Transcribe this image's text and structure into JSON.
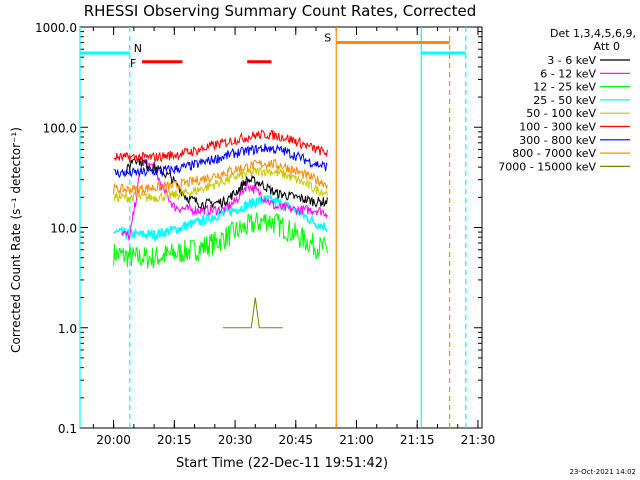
{
  "chart_data": {
    "type": "line",
    "title": "RHESSI Observing Summary Count Rates, Corrected",
    "xlabel": "Start Time (22-Dec-11 19:51:42)",
    "ylabel": "Corrected Count Rate (s⁻¹ detector⁻¹)",
    "y_scale": "log",
    "ylim": [
      0.1,
      1000
    ],
    "xlim": [
      "19:51:42",
      "21:31:00"
    ],
    "x_ticks": [
      "20:00",
      "20:15",
      "20:30",
      "20:45",
      "21:00",
      "21:15",
      "21:30"
    ],
    "y_ticks": [
      "0.1",
      "1.0",
      "10.0",
      "100.0",
      "1000.0"
    ],
    "legend_header": [
      "Det 1,3,4,5,6,9,",
      "Att 0"
    ],
    "legend_position": "right",
    "series": [
      {
        "name": "3 - 6 keV",
        "color": "#000000",
        "x": [
          "20:03",
          "20:05",
          "20:07",
          "20:10",
          "20:14",
          "20:18",
          "20:22",
          "20:27",
          "20:30",
          "20:33",
          "20:36",
          "20:40",
          "20:45",
          "20:50",
          "20:53"
        ],
        "y": [
          35,
          50,
          45,
          40,
          32,
          20,
          17,
          18,
          22,
          30,
          28,
          22,
          20,
          18,
          18
        ]
      },
      {
        "name": "6 - 12 keV",
        "color": "#ff00ff",
        "x": [
          "20:02",
          "20:04",
          "20:07",
          "20:10",
          "20:12",
          "20:15",
          "20:19",
          "20:23",
          "20:27",
          "20:30",
          "20:33",
          "20:36",
          "20:40",
          "20:45",
          "20:50",
          "20:53"
        ],
        "y": [
          9,
          8,
          45,
          40,
          25,
          16,
          15,
          15,
          15,
          18,
          27,
          22,
          16,
          15,
          15,
          14
        ]
      },
      {
        "name": "12 - 25 keV",
        "color": "#00ff00",
        "x": [
          "20:00",
          "20:05",
          "20:10",
          "20:15",
          "20:20",
          "20:25",
          "20:30",
          "20:35",
          "20:38",
          "20:42",
          "20:46",
          "20:50",
          "20:53"
        ],
        "y": [
          5.5,
          5,
          5,
          5.5,
          6,
          7,
          9,
          11,
          12,
          10,
          8,
          6.5,
          6
        ]
      },
      {
        "name": "25 - 50 keV",
        "color": "#00ffff",
        "x": [
          "20:00",
          "20:05",
          "20:10",
          "20:15",
          "20:20",
          "20:25",
          "20:30",
          "20:35",
          "20:38",
          "20:42",
          "20:46",
          "20:50",
          "20:53"
        ],
        "y": [
          9,
          8.5,
          8.5,
          9.5,
          11,
          13,
          15,
          18,
          19,
          17,
          14,
          11,
          10
        ]
      },
      {
        "name": "50 - 100 keV",
        "color": "#c8c800",
        "x": [
          "20:00",
          "20:05",
          "20:10",
          "20:15",
          "20:20",
          "20:25",
          "20:30",
          "20:35",
          "20:38",
          "20:42",
          "20:46",
          "20:50",
          "20:53"
        ],
        "y": [
          20,
          20,
          20,
          21,
          23,
          27,
          32,
          36,
          37,
          34,
          29,
          24,
          22
        ]
      },
      {
        "name": "100 - 300 keV",
        "color": "#ff0000",
        "x": [
          "20:00",
          "20:05",
          "20:10",
          "20:15",
          "20:20",
          "20:25",
          "20:30",
          "20:35",
          "20:38",
          "20:42",
          "20:46",
          "20:50",
          "20:53"
        ],
        "y": [
          50,
          50,
          50,
          53,
          58,
          66,
          75,
          83,
          85,
          80,
          70,
          60,
          55
        ]
      },
      {
        "name": "300 - 800 keV",
        "color": "#0000ff",
        "x": [
          "20:00",
          "20:05",
          "20:10",
          "20:15",
          "20:20",
          "20:25",
          "20:30",
          "20:35",
          "20:38",
          "20:42",
          "20:46",
          "20:50",
          "20:53"
        ],
        "y": [
          35,
          35,
          36,
          38,
          42,
          48,
          55,
          60,
          62,
          58,
          50,
          43,
          40
        ]
      },
      {
        "name": "800 - 7000 keV",
        "color": "#ff8c00",
        "x": [
          "20:00",
          "20:05",
          "20:10",
          "20:15",
          "20:20",
          "20:25",
          "20:30",
          "20:35",
          "20:38",
          "20:42",
          "20:46",
          "20:50",
          "20:53"
        ],
        "y": [
          24,
          24,
          25,
          26,
          29,
          33,
          38,
          42,
          44,
          41,
          35,
          30,
          27
        ]
      },
      {
        "name": "7000 - 15000 keV",
        "color": "#808000",
        "x": [
          "20:27",
          "20:34",
          "20:35",
          "20:36",
          "20:42"
        ],
        "y": [
          1.0,
          1.0,
          2.0,
          1.0,
          1.0
        ]
      }
    ],
    "flags": [
      {
        "label": "N",
        "color": "#00ffff",
        "vline": "20:04",
        "segments": [
          [
            "19:51:42",
            "20:04"
          ],
          [
            "21:16",
            "21:27"
          ]
        ],
        "level": 550
      },
      {
        "label": "F",
        "color": "#ff0000",
        "segments": [
          [
            "20:07",
            "20:17"
          ],
          [
            "20:33",
            "20:39"
          ]
        ],
        "level": 450
      },
      {
        "label": "S",
        "color": "#ff8c00",
        "vline": "20:55",
        "segments": [
          [
            "20:55",
            "21:23"
          ]
        ],
        "level": 700
      }
    ],
    "vertical_lines": [
      {
        "x": "19:51:42",
        "color": "#00ffff",
        "style": "solid"
      },
      {
        "x": "20:04",
        "color": "#00ffff",
        "style": "dashed"
      },
      {
        "x": "20:55",
        "color": "#ff8c00",
        "style": "solid"
      },
      {
        "x": "21:16",
        "color": "#00ffff",
        "style": "solid"
      },
      {
        "x": "21:23",
        "color": "#ff8c00",
        "style": "dashed"
      },
      {
        "x": "21:27",
        "color": "#00ffff",
        "style": "dashed"
      }
    ],
    "grid": false,
    "footer_date": "23-Oct-2021 14:02"
  }
}
